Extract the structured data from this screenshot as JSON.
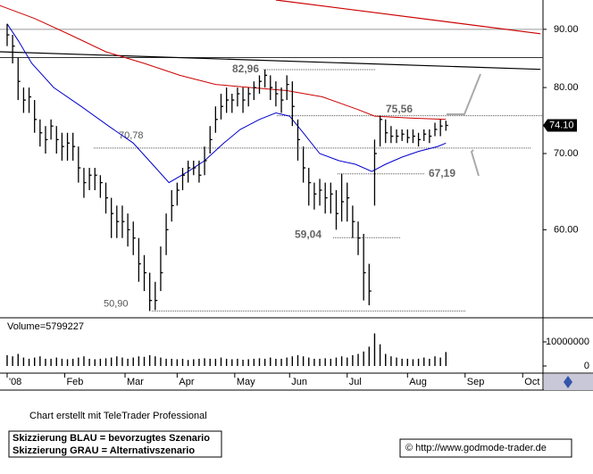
{
  "chart_data": [
    {
      "type": "hilo",
      "log": true,
      "color": "#000000",
      "xlim": [
        -2.6,
        195.4
      ],
      "ylim": [
        50.3,
        95.5
      ],
      "xticks": [
        {
          "value": 0,
          "label": "'08"
        },
        {
          "value": 21,
          "label": "Feb"
        },
        {
          "value": 43,
          "label": "Mar"
        },
        {
          "value": 62,
          "label": "Apr"
        },
        {
          "value": 83,
          "label": "May"
        },
        {
          "value": 103,
          "label": "Jun"
        },
        {
          "value": 124,
          "label": "Jul"
        },
        {
          "value": 146,
          "label": "Aug"
        },
        {
          "value": 167,
          "label": "Sep"
        },
        {
          "value": 188,
          "label": "Oct"
        }
      ],
      "yticks": [
        {
          "value": 90,
          "label": "90.00"
        },
        {
          "value": 80,
          "label": "80.00"
        },
        {
          "value": 70,
          "label": "70.00"
        },
        {
          "value": 60,
          "label": "60.00"
        }
      ],
      "x": [
        0,
        2,
        4,
        6,
        8,
        10,
        12,
        14,
        16,
        18,
        20,
        22,
        24,
        26,
        28,
        30,
        32,
        34,
        36,
        38,
        40,
        42,
        44,
        46,
        48,
        50,
        52,
        54,
        56,
        58,
        60,
        62,
        64,
        66,
        68,
        70,
        72,
        74,
        76,
        78,
        80,
        82,
        84,
        86,
        88,
        90,
        92,
        94,
        96,
        98,
        100,
        102,
        104,
        106,
        108,
        110,
        112,
        114,
        116,
        118,
        120,
        122,
        124,
        126,
        128,
        130,
        132,
        134,
        136,
        138,
        140,
        142,
        144,
        146,
        148,
        150,
        152,
        154,
        156,
        158,
        160
      ],
      "high": [
        91,
        89,
        85,
        80,
        80,
        78,
        75,
        74,
        75,
        74,
        73,
        73,
        73,
        71,
        68,
        68,
        68,
        67,
        66,
        64,
        63,
        63,
        62,
        61,
        59,
        57,
        55,
        54,
        58,
        62,
        65,
        66,
        68,
        69,
        69,
        69,
        71,
        74,
        77,
        79,
        80,
        79,
        80,
        80,
        80,
        81,
        82,
        82.96,
        82,
        81,
        80,
        82,
        81,
        75,
        71,
        68,
        66,
        66.5,
        66,
        66,
        65,
        67.19,
        66,
        63,
        61,
        59.5,
        56,
        72,
        75.56,
        75,
        74,
        73.5,
        73.5,
        73.5,
        73.5,
        73,
        73.5,
        73.5,
        74.5,
        75,
        74.8
      ],
      "low": [
        87,
        84,
        78,
        76,
        76,
        73,
        71,
        70,
        72,
        70,
        69,
        69,
        69,
        66,
        64,
        65,
        65,
        64,
        62,
        59,
        59,
        59,
        58,
        57,
        54,
        53,
        50.9,
        51,
        53,
        57,
        61,
        63,
        65,
        66,
        67,
        66,
        67,
        70,
        73,
        75,
        76,
        76,
        77,
        76,
        77,
        78,
        79,
        80,
        78,
        77,
        76,
        78,
        74,
        69,
        66,
        63,
        62.5,
        63,
        62,
        62,
        60,
        61,
        61,
        59,
        57,
        52,
        51.5,
        63,
        71,
        71.5,
        71.5,
        71.5,
        71.8,
        71.5,
        71.5,
        71,
        71.8,
        71.5,
        72.5,
        72.5,
        73.3
      ],
      "close": [
        89,
        87,
        81,
        78,
        78.5,
        75,
        73,
        72,
        74,
        72,
        71,
        71.5,
        71,
        68,
        66,
        67,
        67,
        66,
        64,
        62,
        61,
        61,
        60,
        59,
        56,
        55,
        52,
        52,
        55,
        60,
        63,
        65,
        67,
        68,
        68,
        67,
        69,
        72,
        75,
        77,
        78,
        78,
        79,
        78,
        79,
        80,
        81,
        82,
        80,
        79,
        78,
        80.5,
        77,
        72,
        68,
        66,
        64.5,
        65,
        64,
        64.5,
        62,
        63.5,
        64,
        61,
        59,
        55,
        53,
        70,
        75,
        73,
        72.5,
        72.5,
        72.8,
        72.3,
        72.5,
        72,
        72.8,
        72.5,
        73.5,
        74,
        74.1
      ],
      "averages": [
        {
          "color": "#0000cc",
          "x": [
            0,
            4,
            9,
            17,
            27,
            37,
            46,
            53,
            59,
            66,
            72,
            79,
            85,
            92,
            98,
            103,
            108,
            114,
            121,
            127,
            133,
            138,
            144,
            150,
            157,
            160
          ],
          "values": [
            91,
            88,
            84,
            80,
            77,
            74,
            71.5,
            68.5,
            66,
            67.5,
            69,
            71.5,
            73.5,
            75,
            76,
            75.5,
            73,
            70,
            69,
            68.5,
            67.5,
            68.5,
            69.5,
            70.3,
            71,
            71.5
          ]
        },
        {
          "color": "#cc0000",
          "x": [
            -3,
            10,
            23,
            36,
            50,
            63,
            76,
            89,
            102,
            115,
            128,
            134,
            147,
            160
          ],
          "values": [
            94.5,
            92,
            89,
            86,
            84,
            82,
            80.5,
            80,
            79.5,
            78.5,
            76.5,
            75.5,
            75.2,
            75
          ]
        }
      ],
      "trendlines": [
        {
          "color": "#cc0000",
          "x": [
            98,
            194.5
          ],
          "values": [
            95.5,
            89.2
          ]
        },
        {
          "color": "#000000",
          "x": [
            -2.6,
            194.5
          ],
          "values": [
            86,
            83
          ]
        }
      ],
      "hlines": [
        90,
        85
      ],
      "hline_colors": [
        "#999999",
        "#333333"
      ],
      "levels": [
        {
          "value": 82.96,
          "label": "82,96"
        },
        {
          "value": 75.56,
          "label": "75,56"
        },
        {
          "value": 70.78,
          "label": "70,78"
        },
        {
          "value": 67.19,
          "label": "67,19"
        },
        {
          "value": 59.04,
          "label": "59,04"
        },
        {
          "value": 50.9,
          "label": "50,90"
        }
      ],
      "last_price": {
        "value": 74.1,
        "label": "74.10"
      }
    },
    {
      "type": "bar",
      "label": "Volume=5799227",
      "color": "#000000",
      "ylim": [
        0,
        18500000
      ],
      "yticks": [
        10000000,
        0
      ],
      "x": [
        0,
        2,
        4,
        6,
        8,
        10,
        12,
        14,
        16,
        18,
        20,
        22,
        24,
        26,
        28,
        30,
        32,
        34,
        36,
        38,
        40,
        42,
        44,
        46,
        48,
        50,
        52,
        54,
        56,
        58,
        60,
        62,
        64,
        66,
        68,
        70,
        72,
        74,
        76,
        78,
        80,
        82,
        84,
        86,
        88,
        90,
        92,
        94,
        96,
        98,
        100,
        102,
        104,
        106,
        108,
        110,
        112,
        114,
        116,
        118,
        120,
        122,
        124,
        126,
        128,
        130,
        132,
        134,
        136,
        138,
        140,
        142,
        144,
        146,
        148,
        150,
        152,
        154,
        156,
        158,
        160
      ],
      "values": [
        4500000,
        4000000,
        5000000,
        3500000,
        3000000,
        3500000,
        4000000,
        3000000,
        3000000,
        3500000,
        3000000,
        2800000,
        3000000,
        3500000,
        4000000,
        3000000,
        2800000,
        3000000,
        3200000,
        3500000,
        4000000,
        3500000,
        3000000,
        3500000,
        4000000,
        3800000,
        4500000,
        4000000,
        3500000,
        3000000,
        3000000,
        2800000,
        3000000,
        2500000,
        2800000,
        3000000,
        3200000,
        3000000,
        3000000,
        3500000,
        3000000,
        2800000,
        3000000,
        2600000,
        2800000,
        3000000,
        3200000,
        3000000,
        3500000,
        3000000,
        3000000,
        3500000,
        4000000,
        4500000,
        4000000,
        3500000,
        3000000,
        3000000,
        3200000,
        3000000,
        3500000,
        4000000,
        3500000,
        4500000,
        5000000,
        6000000,
        8000000,
        13500000,
        9000000,
        5000000,
        4000000,
        3500000,
        3000000,
        3000000,
        2800000,
        3000000,
        3500000,
        3000000,
        4000000,
        3500000,
        5799227
      ]
    }
  ],
  "footer": {
    "credit": "Chart erstellt mit TeleTrader Professional",
    "legend_blue": "Skizzierung BLAU = bevorzugtes Szenario",
    "legend_gray": "Skizzierung GRAU = Alternativszenario",
    "copyright": "© http://www.godmode-trader.de"
  }
}
